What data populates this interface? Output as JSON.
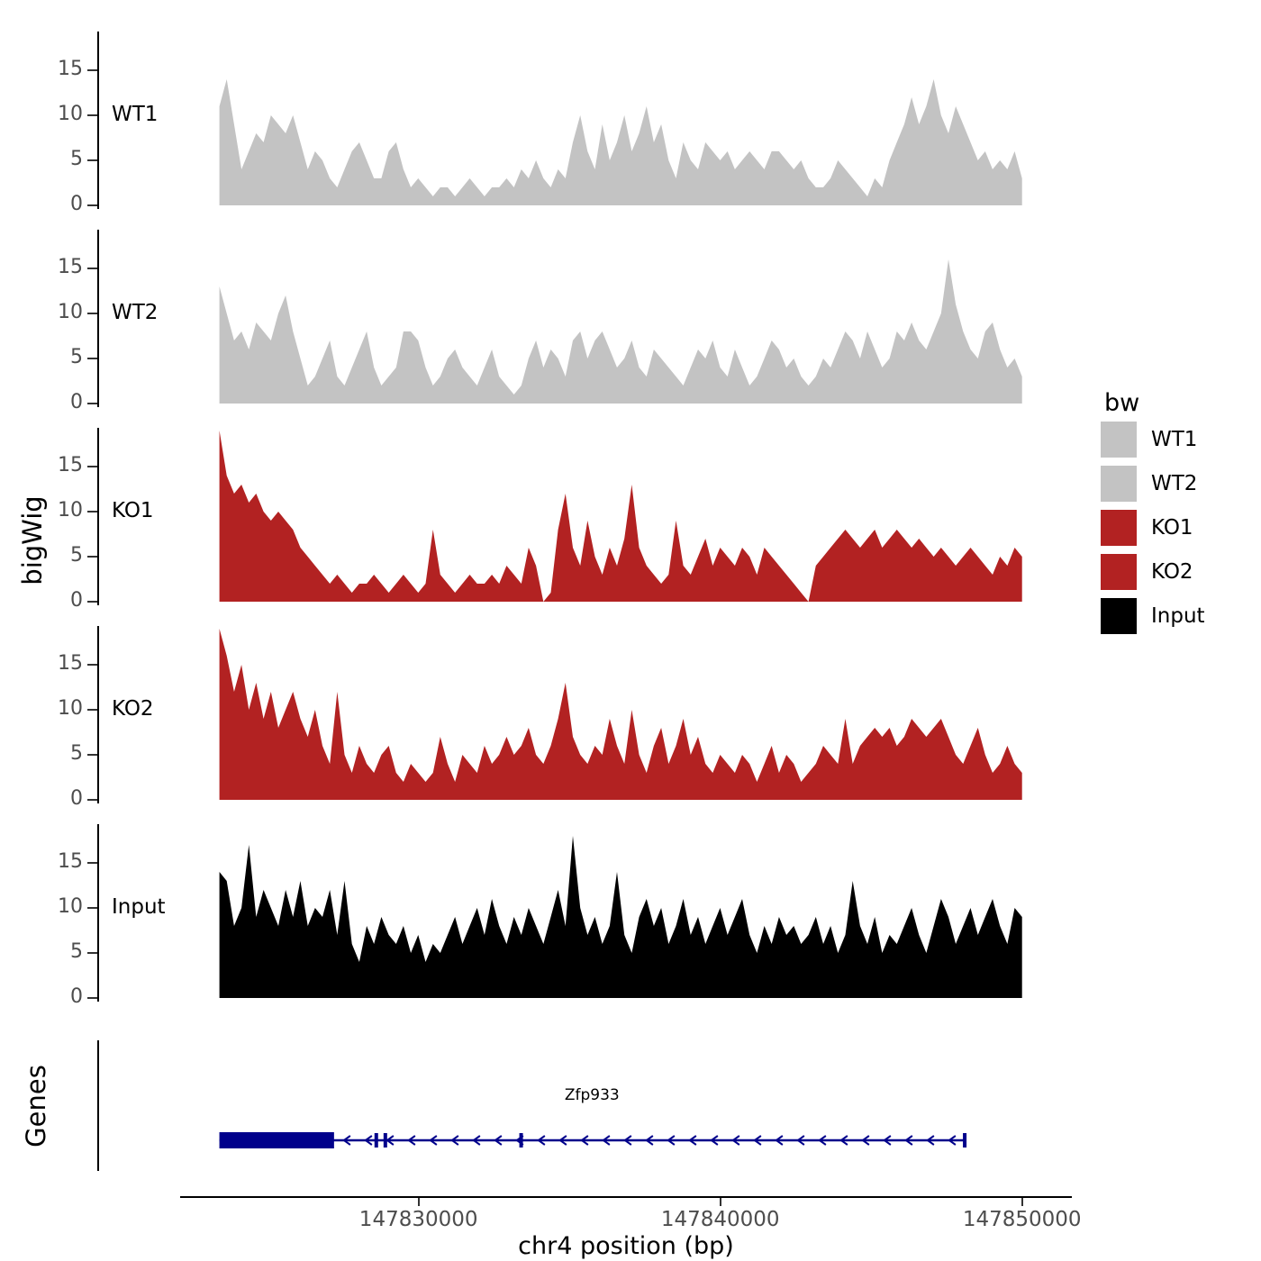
{
  "figure": {
    "y_axis_label": "bigWig",
    "genes_axis_label": "Genes",
    "x_axis_label": "chr4 position (bp)"
  },
  "legend": {
    "title": "bw",
    "entries": [
      {
        "label": "WT1",
        "color": "#C3C3C3"
      },
      {
        "label": "WT2",
        "color": "#C3C3C3"
      },
      {
        "label": "KO1",
        "color": "#B22222"
      },
      {
        "label": "KO2",
        "color": "#B22222"
      },
      {
        "label": "Input",
        "color": "#000000"
      }
    ]
  },
  "chart_data": {
    "type": "area",
    "title": "",
    "xlabel": "chr4 position (bp)",
    "ylabel": "bigWig",
    "x_range_bp": [
      147822100,
      147851650
    ],
    "x_ticks": [
      147830000,
      147840000,
      147850000
    ],
    "x_tick_labels": [
      "147830000",
      "147840000",
      "147850000"
    ],
    "y_ticks": [
      0,
      5,
      10,
      15
    ],
    "ylim": [
      0,
      19.5
    ],
    "grid": false,
    "legend_position": "right",
    "data_start_bp": 147823400,
    "data_end_bp": 147850000,
    "series": [
      {
        "name": "WT1",
        "color": "#C3C3C3",
        "values": [
          11,
          14,
          9,
          4,
          6,
          8,
          7,
          10,
          9,
          8,
          10,
          7,
          4,
          6,
          5,
          3,
          2,
          4,
          6,
          7,
          5,
          3,
          3,
          6,
          7,
          4,
          2,
          3,
          2,
          1,
          2,
          2,
          1,
          2,
          3,
          2,
          1,
          2,
          2,
          3,
          2,
          4,
          3,
          5,
          3,
          2,
          4,
          3,
          7,
          10,
          6,
          4,
          9,
          5,
          7,
          10,
          6,
          8,
          11,
          7,
          9,
          5,
          3,
          7,
          5,
          4,
          7,
          6,
          5,
          6,
          4,
          5,
          6,
          5,
          4,
          6,
          6,
          5,
          4,
          5,
          3,
          2,
          2,
          3,
          5,
          4,
          3,
          2,
          1,
          3,
          2,
          5,
          7,
          9,
          12,
          9,
          11,
          14,
          10,
          8,
          11,
          9,
          7,
          5,
          6,
          4,
          5,
          4,
          6,
          3
        ]
      },
      {
        "name": "WT2",
        "color": "#C3C3C3",
        "values": [
          13,
          10,
          7,
          8,
          6,
          9,
          8,
          7,
          10,
          12,
          8,
          5,
          2,
          3,
          5,
          7,
          3,
          2,
          4,
          6,
          8,
          4,
          2,
          3,
          4,
          8,
          8,
          7,
          4,
          2,
          3,
          5,
          6,
          4,
          3,
          2,
          4,
          6,
          3,
          2,
          1,
          2,
          5,
          7,
          4,
          6,
          5,
          3,
          7,
          8,
          5,
          7,
          8,
          6,
          4,
          5,
          7,
          4,
          3,
          6,
          5,
          4,
          3,
          2,
          4,
          6,
          5,
          7,
          4,
          3,
          6,
          4,
          2,
          3,
          5,
          7,
          6,
          4,
          5,
          3,
          2,
          3,
          5,
          4,
          6,
          8,
          7,
          5,
          8,
          6,
          4,
          5,
          8,
          7,
          9,
          7,
          6,
          8,
          10,
          16,
          11,
          8,
          6,
          5,
          8,
          9,
          6,
          4,
          5,
          3
        ]
      },
      {
        "name": "KO1",
        "color": "#B22222",
        "values": [
          19,
          14,
          12,
          13,
          11,
          12,
          10,
          9,
          10,
          9,
          8,
          6,
          5,
          4,
          3,
          2,
          3,
          2,
          1,
          2,
          2,
          3,
          2,
          1,
          2,
          3,
          2,
          1,
          2,
          8,
          3,
          2,
          1,
          2,
          3,
          2,
          2,
          3,
          2,
          4,
          3,
          2,
          6,
          4,
          0,
          1,
          8,
          12,
          6,
          4,
          9,
          5,
          3,
          6,
          4,
          7,
          13,
          6,
          4,
          3,
          2,
          3,
          9,
          4,
          3,
          5,
          7,
          4,
          6,
          5,
          4,
          6,
          5,
          3,
          6,
          5,
          4,
          3,
          2,
          1,
          0,
          4,
          5,
          6,
          7,
          8,
          7,
          6,
          7,
          8,
          6,
          7,
          8,
          7,
          6,
          7,
          6,
          5,
          6,
          5,
          4,
          5,
          6,
          5,
          4,
          3,
          5,
          4,
          6,
          5
        ]
      },
      {
        "name": "KO2",
        "color": "#B22222",
        "values": [
          19,
          16,
          12,
          15,
          10,
          13,
          9,
          12,
          8,
          10,
          12,
          9,
          7,
          10,
          6,
          4,
          12,
          5,
          3,
          6,
          4,
          3,
          5,
          6,
          3,
          2,
          4,
          3,
          2,
          3,
          7,
          4,
          2,
          5,
          4,
          3,
          6,
          4,
          5,
          7,
          5,
          6,
          8,
          5,
          4,
          6,
          9,
          13,
          7,
          5,
          4,
          6,
          5,
          9,
          6,
          4,
          10,
          5,
          3,
          6,
          8,
          4,
          6,
          9,
          5,
          7,
          4,
          3,
          5,
          4,
          3,
          5,
          4,
          2,
          4,
          6,
          3,
          5,
          4,
          2,
          3,
          4,
          6,
          5,
          4,
          9,
          4,
          6,
          7,
          8,
          7,
          8,
          6,
          7,
          9,
          8,
          7,
          8,
          9,
          7,
          5,
          4,
          6,
          8,
          5,
          3,
          4,
          6,
          4,
          3
        ]
      },
      {
        "name": "Input",
        "color": "#000000",
        "values": [
          14,
          13,
          8,
          10,
          17,
          9,
          12,
          10,
          8,
          12,
          9,
          13,
          8,
          10,
          9,
          12,
          7,
          13,
          6,
          4,
          8,
          6,
          9,
          7,
          6,
          8,
          5,
          7,
          4,
          6,
          5,
          7,
          9,
          6,
          8,
          10,
          7,
          11,
          8,
          6,
          9,
          7,
          10,
          8,
          6,
          9,
          12,
          8,
          18,
          10,
          7,
          9,
          6,
          8,
          14,
          7,
          5,
          9,
          11,
          8,
          10,
          6,
          8,
          11,
          7,
          9,
          6,
          8,
          10,
          7,
          9,
          11,
          7,
          5,
          8,
          6,
          9,
          7,
          8,
          6,
          7,
          9,
          6,
          8,
          5,
          7,
          13,
          8,
          6,
          9,
          5,
          7,
          6,
          8,
          10,
          7,
          5,
          8,
          11,
          9,
          6,
          8,
          10,
          7,
          9,
          11,
          8,
          6,
          10,
          9
        ]
      }
    ],
    "gene_track": {
      "label": "Genes",
      "gene": {
        "name": "Zfp933",
        "start_bp": 147823400,
        "end_bp": 147848100,
        "strand": "-",
        "color": "#00008B",
        "thick_exon": {
          "start_bp": 147823400,
          "end_bp": 147827200
        },
        "exon_marks_bp": [
          147828600,
          147828900,
          147833400,
          147848100
        ]
      }
    }
  }
}
